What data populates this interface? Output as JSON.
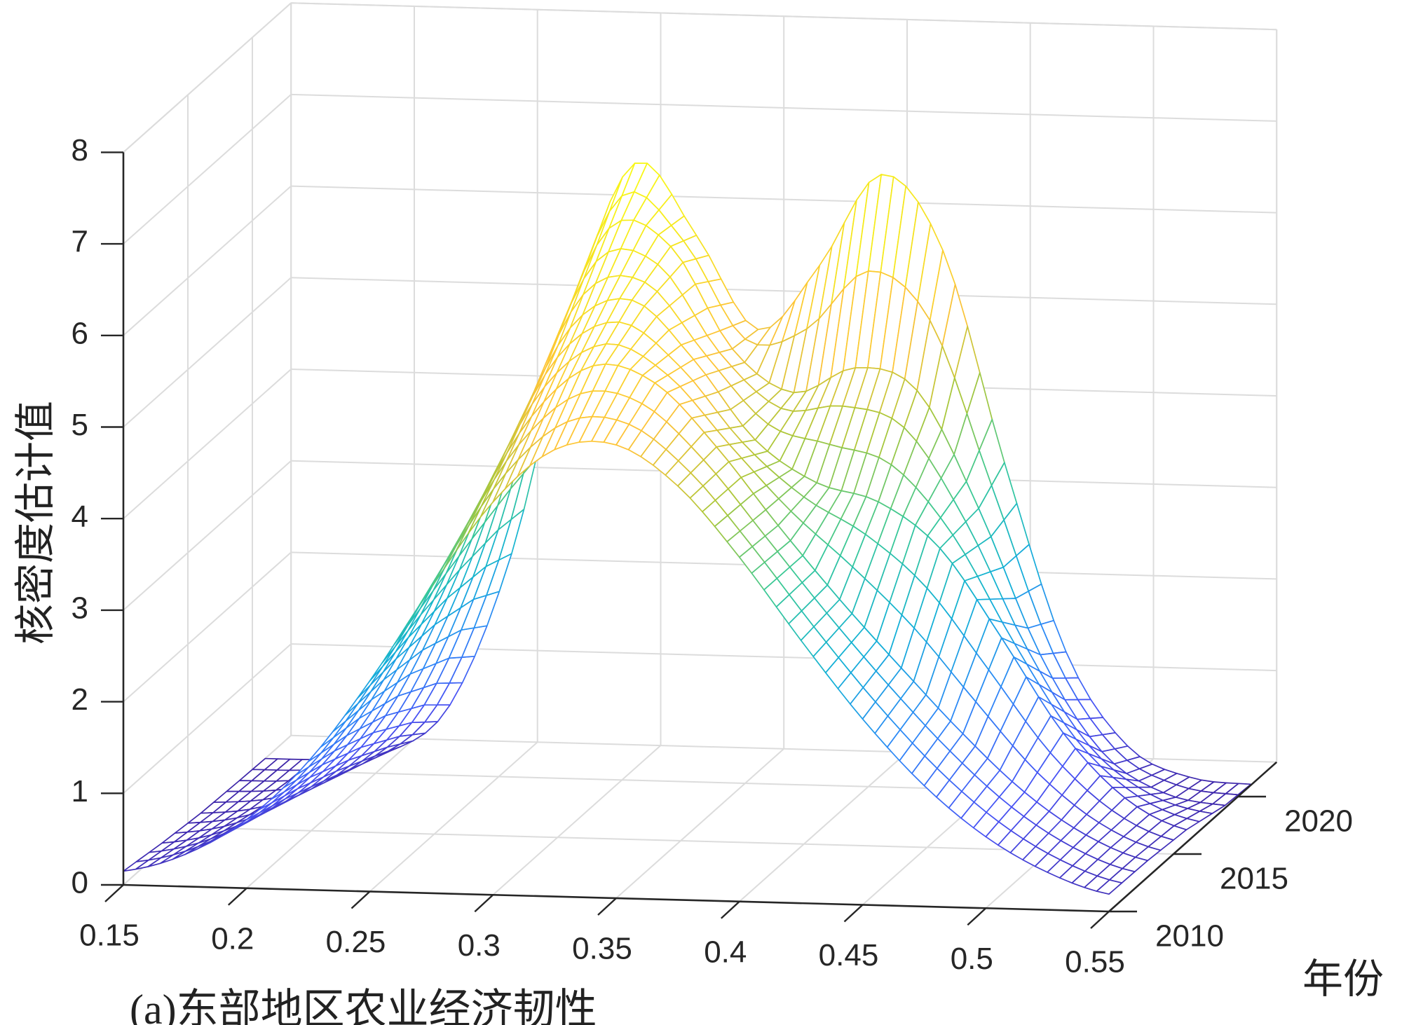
{
  "caption": "(a)东部地区农业经济韧性",
  "chart_data": {
    "type": "mesh3d",
    "title": "",
    "xlabel": "",
    "ylabel": "年份",
    "zlabel": "核密度估计值",
    "x": [
      0.15,
      0.175,
      0.2,
      0.225,
      0.25,
      0.275,
      0.3,
      0.325,
      0.35,
      0.375,
      0.4,
      0.425,
      0.45,
      0.475,
      0.5,
      0.525,
      0.55
    ],
    "years": [
      2010,
      2013,
      2016,
      2019,
      2021
    ],
    "z": [
      [
        0.15,
        0.35,
        0.75,
        1.4,
        2.3,
        3.34,
        4.29,
        4.88,
        4.95,
        4.52,
        3.76,
        2.87,
        2.03,
        1.32,
        0.78,
        0.41,
        0.19
      ],
      [
        0.08,
        0.23,
        0.6,
        1.31,
        2.4,
        3.71,
        4.85,
        5.42,
        5.25,
        4.57,
        3.73,
        2.94,
        2.21,
        1.51,
        0.89,
        0.44,
        0.18
      ],
      [
        0.03,
        0.12,
        0.42,
        1.15,
        2.45,
        4.11,
        5.44,
        5.76,
        5.13,
        4.27,
        3.82,
        3.63,
        3.14,
        2.18,
        1.16,
        0.47,
        0.14
      ],
      [
        0.01,
        0.04,
        0.23,
        0.89,
        2.42,
        4.6,
        6.15,
        5.97,
        4.87,
        4.41,
        4.7,
        4.47,
        3.2,
        1.62,
        0.58,
        0.15,
        0.03
      ],
      [
        0.0,
        0.01,
        0.11,
        0.64,
        2.31,
        4.99,
        6.61,
        5.84,
        4.83,
        5.55,
        6.56,
        5.75,
        3.45,
        1.4,
        0.39,
        0.07,
        0.01
      ]
    ],
    "xlim": [
      0.15,
      0.55
    ],
    "ylim": [
      2010,
      2023
    ],
    "zlim": [
      0,
      8
    ],
    "xticks": [
      0.15,
      0.2,
      0.25,
      0.3,
      0.35,
      0.4,
      0.45,
      0.5,
      0.55
    ],
    "xticklabels": [
      "0.15",
      "0.2",
      "0.25",
      "0.3",
      "0.35",
      "0.4",
      "0.45",
      "0.5",
      "0.55"
    ],
    "yticks": [
      2010,
      2015,
      2020
    ],
    "yticklabels": [
      "2010",
      "2015",
      "2020"
    ],
    "zticks": [
      0,
      1,
      2,
      3,
      4,
      5,
      6,
      7,
      8
    ],
    "zticklabels": [
      "0",
      "1",
      "2",
      "3",
      "4",
      "5",
      "6",
      "7",
      "8"
    ],
    "grid": true,
    "colormap": "parula",
    "colors": {
      "axis": "#262626",
      "grid": "#dcdcdc",
      "face": "#ffffff"
    }
  }
}
